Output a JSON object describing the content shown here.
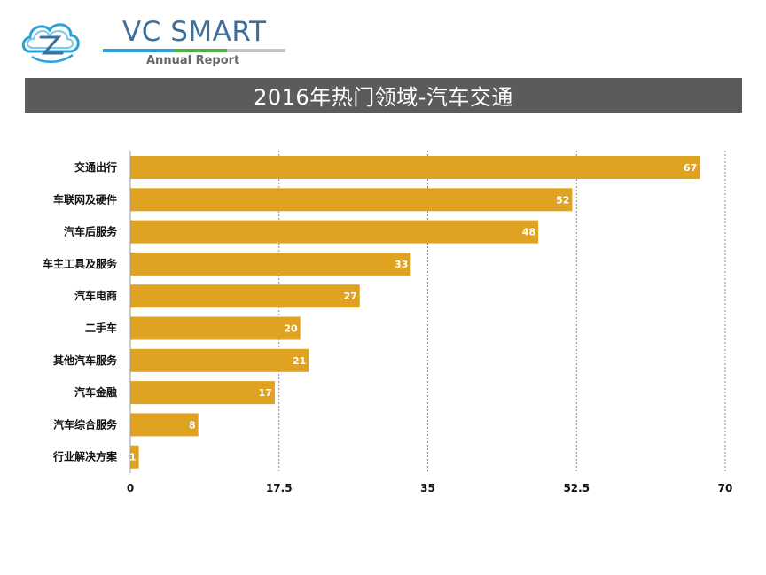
{
  "brand": {
    "name": "VC SMART",
    "subtitle": "Annual Report",
    "primary_color": "#3c6f9c",
    "accent_colors": [
      "#2aa0d8",
      "#4ab04a",
      "#c7c7c7"
    ]
  },
  "banner": {
    "title": "2016年热门领域-汽车交通",
    "background": "#5b5b5b"
  },
  "chart_data": {
    "type": "bar",
    "orientation": "horizontal",
    "title": "2016年热门领域-汽车交通",
    "categories": [
      "交通出行",
      "车联网及硬件",
      "汽车后服务",
      "车主工具及服务",
      "汽车电商",
      "二手车",
      "其他汽车服务",
      "汽车金融",
      "汽车综合服务",
      "行业解决方案"
    ],
    "values": [
      67,
      52,
      48,
      33,
      27,
      20,
      21,
      17,
      8,
      1
    ],
    "xlim": [
      0,
      70
    ],
    "ticks": [
      0,
      17.5,
      35,
      52.5,
      70
    ],
    "tick_labels": [
      "0",
      "17.5",
      "35",
      "52.5",
      "70"
    ],
    "grid": "vertical-dotted",
    "bar_color": "#e0a321",
    "xlabel": "",
    "ylabel": ""
  }
}
